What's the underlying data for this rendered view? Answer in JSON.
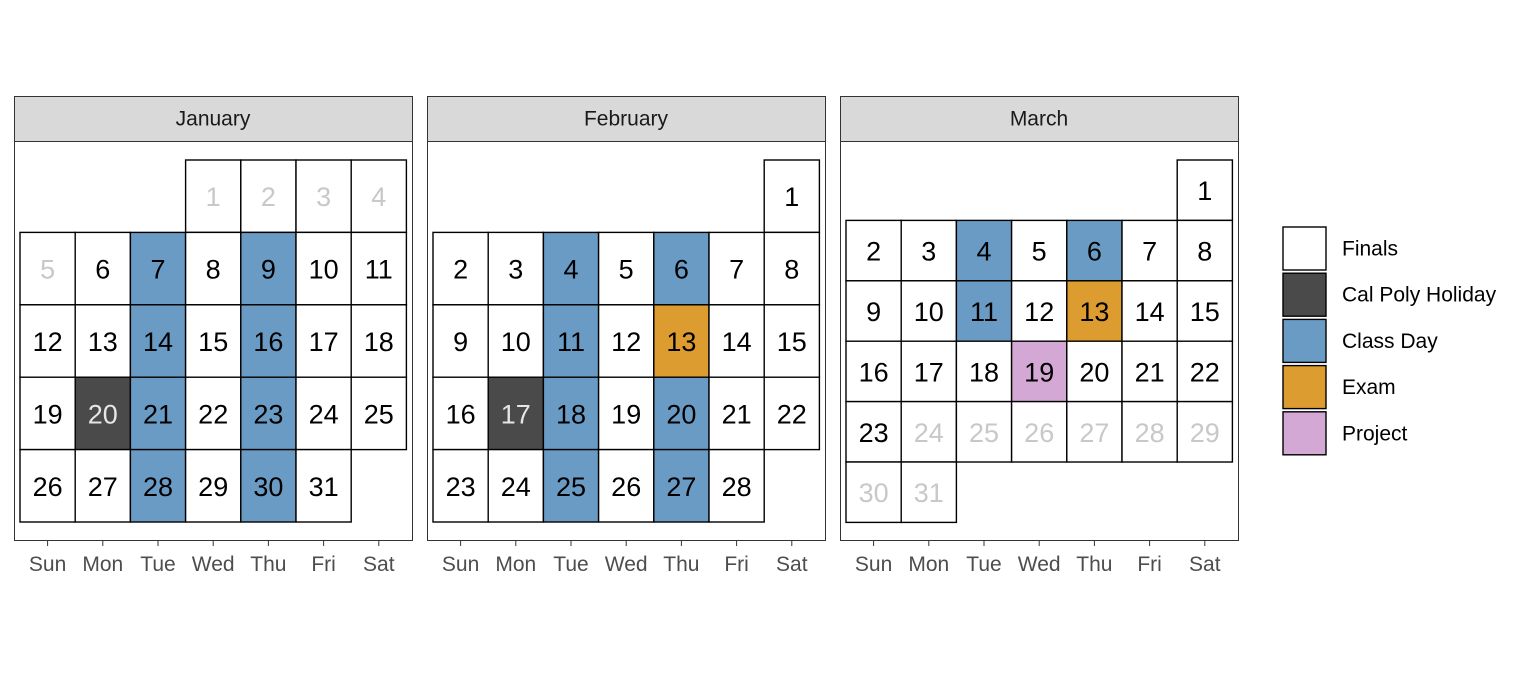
{
  "chart_data": {
    "type": "heatmap",
    "weekdays": [
      "Sun",
      "Mon",
      "Tue",
      "Wed",
      "Thu",
      "Fri",
      "Sat"
    ],
    "categories": [
      {
        "name": "Finals",
        "color": "#ffffff"
      },
      {
        "name": "Cal Poly Holiday",
        "color": "#4a4a4a"
      },
      {
        "name": "Class Day",
        "color": "#6a9bc4"
      },
      {
        "name": "Exam",
        "color": "#dd9c2f"
      },
      {
        "name": "Project",
        "color": "#d4a8d4"
      }
    ],
    "day_text_color": "#000000",
    "day_text_color_inactive": "#c8c8c8",
    "day_text_color_on_dark": "#e6e6e6",
    "months": [
      {
        "name": "January",
        "first_weekday": 3,
        "days": 31,
        "inactive_days": [
          1,
          2,
          3,
          4,
          5
        ],
        "marked": {
          "7": "Class Day",
          "9": "Class Day",
          "14": "Class Day",
          "16": "Class Day",
          "20": "Cal Poly Holiday",
          "21": "Class Day",
          "23": "Class Day",
          "28": "Class Day",
          "30": "Class Day"
        }
      },
      {
        "name": "February",
        "first_weekday": 6,
        "days": 28,
        "inactive_days": [],
        "marked": {
          "4": "Class Day",
          "6": "Class Day",
          "11": "Class Day",
          "13": "Exam",
          "17": "Cal Poly Holiday",
          "18": "Class Day",
          "20": "Class Day",
          "25": "Class Day",
          "27": "Class Day"
        }
      },
      {
        "name": "March",
        "first_weekday": 6,
        "days": 31,
        "inactive_days": [
          24,
          25,
          26,
          27,
          28,
          29,
          30,
          31
        ],
        "marked": {
          "4": "Class Day",
          "6": "Class Day",
          "11": "Class Day",
          "13": "Exam",
          "19": "Project"
        }
      }
    ]
  }
}
